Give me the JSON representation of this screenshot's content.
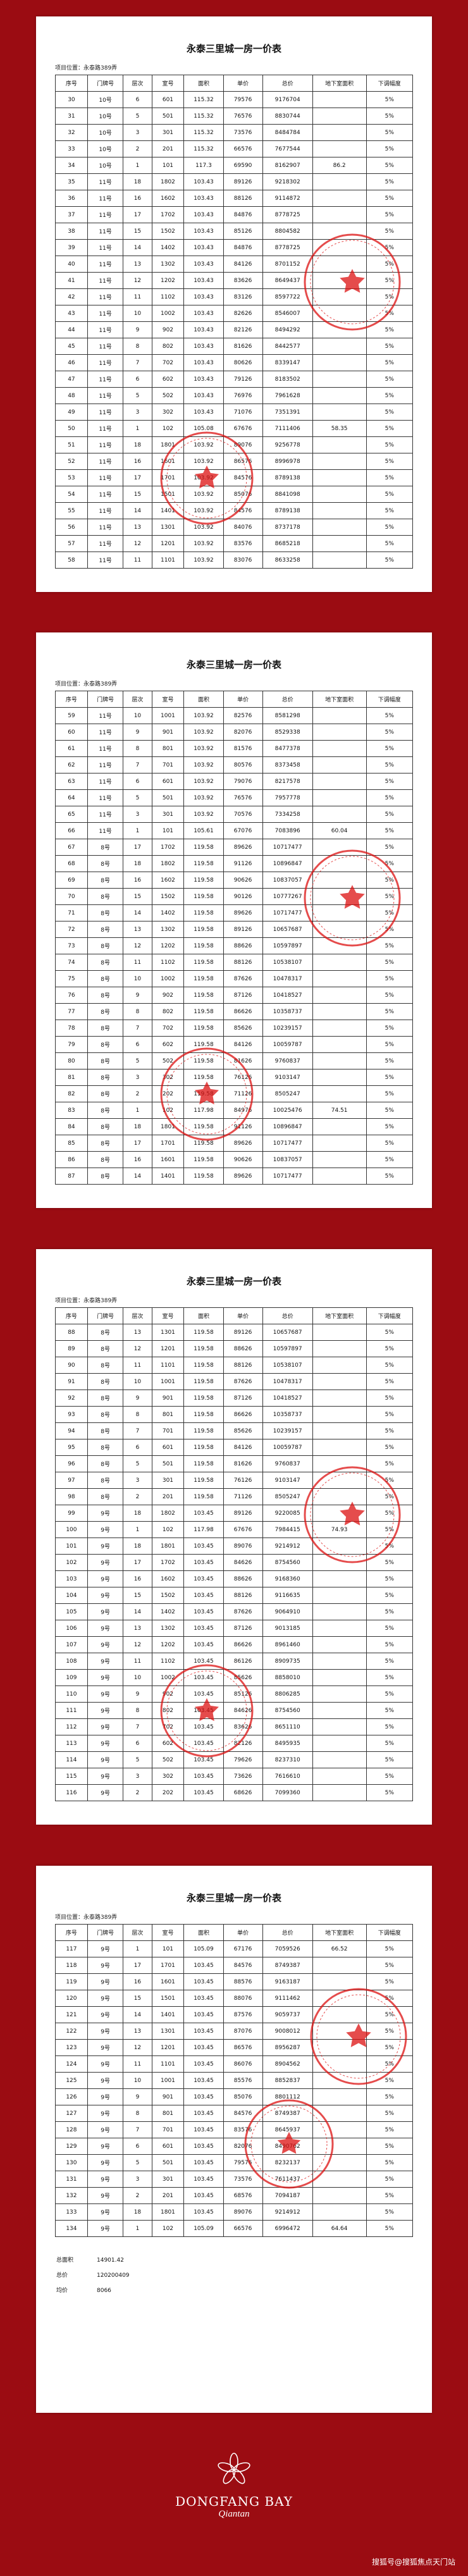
{
  "pages": [
    {
      "title": "永泰三里城一房一价表",
      "location": "项目位置：永泰路389弄",
      "columns": [
        "序号",
        "门牌号",
        "层次",
        "室号",
        "面积",
        "单价",
        "总价",
        "地下室面积",
        "下调幅度"
      ],
      "rows": [
        [
          30,
          "10号",
          6,
          601,
          115.32,
          79576,
          9176704,
          null,
          "5%"
        ],
        [
          31,
          "10号",
          5,
          501,
          115.32,
          76576,
          8830744,
          null,
          "5%"
        ],
        [
          32,
          "10号",
          3,
          301,
          115.32,
          73576,
          8484784,
          null,
          "5%"
        ],
        [
          33,
          "10号",
          2,
          201,
          115.32,
          66576,
          7677544,
          null,
          "5%"
        ],
        [
          34,
          "10号",
          1,
          101,
          117.3,
          69590,
          8162907,
          86.2,
          "5%"
        ],
        [
          35,
          "11号",
          18,
          1802,
          103.43,
          89126,
          9218302,
          null,
          "5%"
        ],
        [
          36,
          "11号",
          16,
          1602,
          103.43,
          88126,
          9114872,
          null,
          "5%"
        ],
        [
          37,
          "11号",
          17,
          1702,
          103.43,
          84876,
          8778725,
          null,
          "5%"
        ],
        [
          38,
          "11号",
          15,
          1502,
          103.43,
          85126,
          8804582,
          null,
          "5%"
        ],
        [
          39,
          "11号",
          14,
          1402,
          103.43,
          84876,
          8778725,
          null,
          "5%"
        ],
        [
          40,
          "11号",
          13,
          1302,
          103.43,
          84126,
          8701152,
          null,
          "5%"
        ],
        [
          41,
          "11号",
          12,
          1202,
          103.43,
          83626,
          8649437,
          null,
          "5%"
        ],
        [
          42,
          "11号",
          11,
          1102,
          103.43,
          83126,
          8597722,
          null,
          "5%"
        ],
        [
          43,
          "11号",
          10,
          1002,
          103.43,
          82626,
          8546007,
          null,
          "5%"
        ],
        [
          44,
          "11号",
          9,
          902,
          103.43,
          82126,
          8494292,
          null,
          "5%"
        ],
        [
          45,
          "11号",
          8,
          802,
          103.43,
          81626,
          8442577,
          null,
          "5%"
        ],
        [
          46,
          "11号",
          7,
          702,
          103.43,
          80626,
          8339147,
          null,
          "5%"
        ],
        [
          47,
          "11号",
          6,
          602,
          103.43,
          79126,
          8183502,
          null,
          "5%"
        ],
        [
          48,
          "11号",
          5,
          502,
          103.43,
          76976,
          7961628,
          null,
          "5%"
        ],
        [
          49,
          "11号",
          3,
          302,
          103.43,
          71076,
          7351391,
          null,
          "5%"
        ],
        [
          50,
          "11号",
          1,
          102,
          105.08,
          67676,
          7111406,
          58.35,
          "5%"
        ],
        [
          51,
          "11号",
          18,
          1801,
          103.92,
          89076,
          9256778,
          null,
          "5%"
        ],
        [
          52,
          "11号",
          16,
          1601,
          103.92,
          86576,
          8996978,
          null,
          "5%"
        ],
        [
          53,
          "11号",
          17,
          1701,
          103.92,
          84576,
          8789138,
          null,
          "5%"
        ],
        [
          54,
          "11号",
          15,
          1501,
          103.92,
          85076,
          8841098,
          null,
          "5%"
        ],
        [
          55,
          "11号",
          14,
          1401,
          103.92,
          84576,
          8789138,
          null,
          "5%"
        ],
        [
          56,
          "11号",
          13,
          1301,
          103.92,
          84076,
          8737178,
          null,
          "5%"
        ],
        [
          57,
          "11号",
          12,
          1201,
          103.92,
          83576,
          8685218,
          null,
          "5%"
        ],
        [
          58,
          "11号",
          11,
          1101,
          103.92,
          83076,
          8633258,
          null,
          "5%"
        ]
      ]
    },
    {
      "title": "永泰三里城一房一价表",
      "location": "项目位置：永泰路389弄",
      "columns": [
        "序号",
        "门牌号",
        "层次",
        "室号",
        "面积",
        "单价",
        "总价",
        "地下室面积",
        "下调幅度"
      ],
      "rows": [
        [
          59,
          "11号",
          10,
          1001,
          103.92,
          82576,
          8581298,
          null,
          "5%"
        ],
        [
          60,
          "11号",
          9,
          901,
          103.92,
          82076,
          8529338,
          null,
          "5%"
        ],
        [
          61,
          "11号",
          8,
          801,
          103.92,
          81576,
          8477378,
          null,
          "5%"
        ],
        [
          62,
          "11号",
          7,
          701,
          103.92,
          80576,
          8373458,
          null,
          "5%"
        ],
        [
          63,
          "11号",
          6,
          601,
          103.92,
          79076,
          8217578,
          null,
          "5%"
        ],
        [
          64,
          "11号",
          5,
          501,
          103.92,
          76576,
          7957778,
          null,
          "5%"
        ],
        [
          65,
          "11号",
          3,
          301,
          103.92,
          70576,
          7334258,
          null,
          "5%"
        ],
        [
          66,
          "11号",
          1,
          101,
          105.61,
          67076,
          7083896,
          60.04,
          "5%"
        ],
        [
          67,
          "8号",
          17,
          1702,
          119.58,
          89626,
          10717477,
          null,
          "5%"
        ],
        [
          68,
          "8号",
          18,
          1802,
          119.58,
          91126,
          10896847,
          null,
          "5%"
        ],
        [
          69,
          "8号",
          16,
          1602,
          119.58,
          90626,
          10837057,
          null,
          "5%"
        ],
        [
          70,
          "8号",
          15,
          1502,
          119.58,
          90126,
          10777267,
          null,
          "5%"
        ],
        [
          71,
          "8号",
          14,
          1402,
          119.58,
          89626,
          10717477,
          null,
          "5%"
        ],
        [
          72,
          "8号",
          13,
          1302,
          119.58,
          89126,
          10657687,
          null,
          "5%"
        ],
        [
          73,
          "8号",
          12,
          1202,
          119.58,
          88626,
          10597897,
          null,
          "5%"
        ],
        [
          74,
          "8号",
          11,
          1102,
          119.58,
          88126,
          10538107,
          null,
          "5%"
        ],
        [
          75,
          "8号",
          10,
          1002,
          119.58,
          87626,
          10478317,
          null,
          "5%"
        ],
        [
          76,
          "8号",
          9,
          902,
          119.58,
          87126,
          10418527,
          null,
          "5%"
        ],
        [
          77,
          "8号",
          8,
          802,
          119.58,
          86626,
          10358737,
          null,
          "5%"
        ],
        [
          78,
          "8号",
          7,
          702,
          119.58,
          85626,
          10239157,
          null,
          "5%"
        ],
        [
          79,
          "8号",
          6,
          602,
          119.58,
          84126,
          10059787,
          null,
          "5%"
        ],
        [
          80,
          "8号",
          5,
          502,
          119.58,
          81626,
          9760837,
          null,
          "5%"
        ],
        [
          81,
          "8号",
          3,
          302,
          119.58,
          76126,
          9103147,
          null,
          "5%"
        ],
        [
          82,
          "8号",
          2,
          202,
          119.58,
          71126,
          8505247,
          null,
          "5%"
        ],
        [
          83,
          "8号",
          1,
          102,
          117.98,
          84976,
          10025476,
          74.51,
          "5%"
        ],
        [
          84,
          "8号",
          18,
          1801,
          119.58,
          91126,
          10896847,
          null,
          "5%"
        ],
        [
          85,
          "8号",
          17,
          1701,
          119.58,
          89626,
          10717477,
          null,
          "5%"
        ],
        [
          86,
          "8号",
          16,
          1601,
          119.58,
          90626,
          10837057,
          null,
          "5%"
        ],
        [
          87,
          "8号",
          14,
          1401,
          119.58,
          89626,
          10717477,
          null,
          "5%"
        ]
      ]
    },
    {
      "title": "永泰三里城一房一价表",
      "location": "项目位置：永泰路389弄",
      "columns": [
        "序号",
        "门牌号",
        "层次",
        "室号",
        "面积",
        "单价",
        "总价",
        "地下室面积",
        "下调幅度"
      ],
      "rows": [
        [
          88,
          "8号",
          13,
          1301,
          119.58,
          89126,
          10657687,
          null,
          "5%"
        ],
        [
          89,
          "8号",
          12,
          1201,
          119.58,
          88626,
          10597897,
          null,
          "5%"
        ],
        [
          90,
          "8号",
          11,
          1101,
          119.58,
          88126,
          10538107,
          null,
          "5%"
        ],
        [
          91,
          "8号",
          10,
          1001,
          119.58,
          87626,
          10478317,
          null,
          "5%"
        ],
        [
          92,
          "8号",
          9,
          901,
          119.58,
          87126,
          10418527,
          null,
          "5%"
        ],
        [
          93,
          "8号",
          8,
          801,
          119.58,
          86626,
          10358737,
          null,
          "5%"
        ],
        [
          94,
          "8号",
          7,
          701,
          119.58,
          85626,
          10239157,
          null,
          "5%"
        ],
        [
          95,
          "8号",
          6,
          601,
          119.58,
          84126,
          10059787,
          null,
          "5%"
        ],
        [
          96,
          "8号",
          5,
          501,
          119.58,
          81626,
          9760837,
          null,
          "5%"
        ],
        [
          97,
          "8号",
          3,
          301,
          119.58,
          76126,
          9103147,
          null,
          "5%"
        ],
        [
          98,
          "8号",
          2,
          201,
          119.58,
          71126,
          8505247,
          null,
          "5%"
        ],
        [
          99,
          "9号",
          18,
          1802,
          103.45,
          89126,
          9220085,
          null,
          "5%"
        ],
        [
          100,
          "9号",
          1,
          102,
          117.98,
          67676,
          7984415,
          74.93,
          "5%"
        ],
        [
          101,
          "9号",
          18,
          1801,
          103.45,
          89076,
          9214912,
          null,
          "5%"
        ],
        [
          102,
          "9号",
          17,
          1702,
          103.45,
          84626,
          8754560,
          null,
          "5%"
        ],
        [
          103,
          "9号",
          16,
          1602,
          103.45,
          88626,
          9168360,
          null,
          "5%"
        ],
        [
          104,
          "9号",
          15,
          1502,
          103.45,
          88126,
          9116635,
          null,
          "5%"
        ],
        [
          105,
          "9号",
          14,
          1402,
          103.45,
          87626,
          9064910,
          null,
          "5%"
        ],
        [
          106,
          "9号",
          13,
          1302,
          103.45,
          87126,
          9013185,
          null,
          "5%"
        ],
        [
          107,
          "9号",
          12,
          1202,
          103.45,
          86626,
          8961460,
          null,
          "5%"
        ],
        [
          108,
          "9号",
          11,
          1102,
          103.45,
          86126,
          8909735,
          null,
          "5%"
        ],
        [
          109,
          "9号",
          10,
          1002,
          103.45,
          85626,
          8858010,
          null,
          "5%"
        ],
        [
          110,
          "9号",
          9,
          902,
          103.45,
          85126,
          8806285,
          null,
          "5%"
        ],
        [
          111,
          "9号",
          8,
          802,
          103.45,
          84626,
          8754560,
          null,
          "5%"
        ],
        [
          112,
          "9号",
          7,
          702,
          103.45,
          83626,
          8651110,
          null,
          "5%"
        ],
        [
          113,
          "9号",
          6,
          602,
          103.45,
          82126,
          8495935,
          null,
          "5%"
        ],
        [
          114,
          "9号",
          5,
          502,
          103.45,
          79626,
          8237310,
          null,
          "5%"
        ],
        [
          115,
          "9号",
          3,
          302,
          103.45,
          73626,
          7616610,
          null,
          "5%"
        ],
        [
          116,
          "9号",
          2,
          202,
          103.45,
          68626,
          7099360,
          null,
          "5%"
        ]
      ]
    },
    {
      "title": "永泰三里城一房一价表",
      "location": "项目位置：永泰路389弄",
      "columns": [
        "序号",
        "门牌号",
        "层次",
        "室号",
        "面积",
        "单价",
        "总价",
        "地下室面积",
        "下调幅度"
      ],
      "rows": [
        [
          117,
          "9号",
          1,
          101,
          105.09,
          67176,
          7059526,
          66.52,
          "5%"
        ],
        [
          118,
          "9号",
          17,
          1701,
          103.45,
          84576,
          8749387,
          null,
          "5%"
        ],
        [
          119,
          "9号",
          16,
          1601,
          103.45,
          88576,
          9163187,
          null,
          "5%"
        ],
        [
          120,
          "9号",
          15,
          1501,
          103.45,
          88076,
          9111462,
          null,
          "5%"
        ],
        [
          121,
          "9号",
          14,
          1401,
          103.45,
          87576,
          9059737,
          null,
          "5%"
        ],
        [
          122,
          "9号",
          13,
          1301,
          103.45,
          87076,
          9008012,
          null,
          "5%"
        ],
        [
          123,
          "9号",
          12,
          1201,
          103.45,
          86576,
          8956287,
          null,
          "5%"
        ],
        [
          124,
          "9号",
          11,
          1101,
          103.45,
          86076,
          8904562,
          null,
          "5%"
        ],
        [
          125,
          "9号",
          10,
          1001,
          103.45,
          85576,
          8852837,
          null,
          "5%"
        ],
        [
          126,
          "9号",
          9,
          901,
          103.45,
          85076,
          8801112,
          null,
          "5%"
        ],
        [
          127,
          "9号",
          8,
          801,
          103.45,
          84576,
          8749387,
          null,
          "5%"
        ],
        [
          128,
          "9号",
          7,
          701,
          103.45,
          83576,
          8645937,
          null,
          "5%"
        ],
        [
          129,
          "9号",
          6,
          601,
          103.45,
          82076,
          8490762,
          null,
          "5%"
        ],
        [
          130,
          "9号",
          5,
          501,
          103.45,
          79576,
          8232137,
          null,
          "5%"
        ],
        [
          131,
          "9号",
          3,
          301,
          103.45,
          73576,
          7611437,
          null,
          "5%"
        ],
        [
          132,
          "9号",
          2,
          201,
          103.45,
          68576,
          7094187,
          null,
          "5%"
        ],
        [
          133,
          "9号",
          18,
          1801,
          103.45,
          89076,
          9214912,
          null,
          "5%"
        ],
        [
          134,
          "9号",
          1,
          102,
          105.09,
          66576,
          6996472,
          64.64,
          "5%"
        ]
      ]
    }
  ],
  "summary": [
    {
      "label": "总面积",
      "value": 14901.42
    },
    {
      "label": "总价",
      "value": 120200409
    },
    {
      "label": "均价",
      "value": 8066
    }
  ],
  "brand": {
    "name": "DONGFANG BAY",
    "script": "Qiantan"
  },
  "watermark": "搜狐号@搜狐焦点天门站"
}
